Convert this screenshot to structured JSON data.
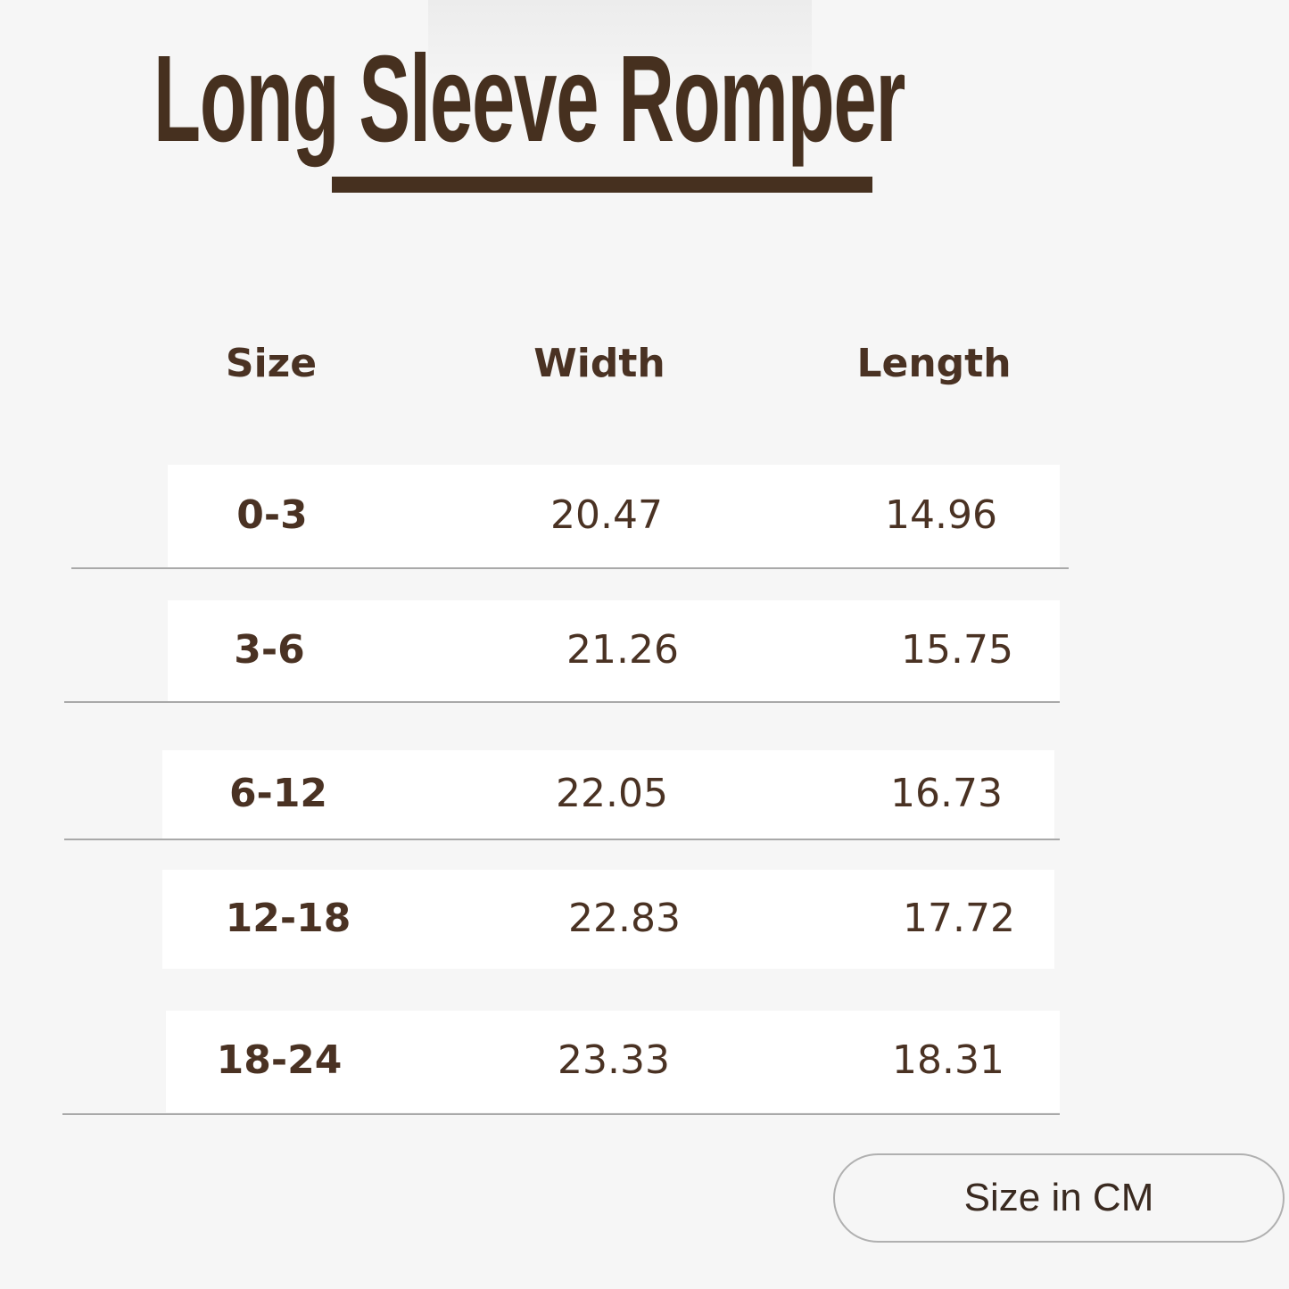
{
  "title": "Long Sleeve Romper",
  "colors": {
    "brand_brown": "#46301f",
    "background": "#f6f6f6",
    "row_background": "#ffffff"
  },
  "table": {
    "headers": [
      "Size",
      "Width",
      "Length"
    ],
    "rows": [
      [
        "0-3",
        "20.47",
        "14.96"
      ],
      [
        "3-6",
        "21.26",
        "15.75"
      ],
      [
        "6-12",
        "22.05",
        "16.73"
      ],
      [
        "12-18",
        "22.83",
        "17.72"
      ],
      [
        "18-24",
        "23.33",
        "18.31"
      ]
    ]
  },
  "unit_badge": "Size in CM"
}
